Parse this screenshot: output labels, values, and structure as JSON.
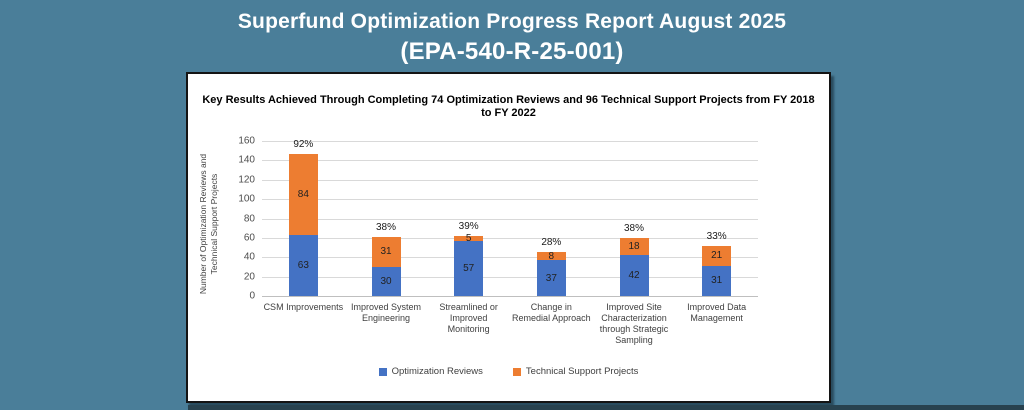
{
  "page": {
    "title_line1": "Superfund Optimization Progress Report August 2025",
    "title_line2": "(EPA-540-R-25-001)"
  },
  "colors": {
    "background": "#4a7e99",
    "panel": "#ffffff",
    "panel_border": "#141414",
    "optimization_reviews": "#4472C4",
    "technical_support_projects": "#ED7D31",
    "gridline": "#d9d9d9"
  },
  "chart_data": {
    "type": "bar",
    "stacked": true,
    "title": "Key Results Achieved Through Completing 74 Optimization Reviews and 96 Technical Support Projects from FY 2018 to FY 2022",
    "ylabel": "Number of Optimization Reviews and Technical Support Projects",
    "ylabel_lines": [
      "Number of Optimization Reviews and",
      "Technical Support Projects"
    ],
    "xlabel": "",
    "ylim": [
      0,
      160
    ],
    "yticks": [
      0,
      20,
      40,
      60,
      80,
      100,
      120,
      140,
      160
    ],
    "grid": true,
    "legend_position": "bottom",
    "categories": [
      "CSM Improvements",
      "Improved System Engineering",
      "Streamlined or Improved Monitoring",
      "Change in Remedial Approach",
      "Improved Site Characterization through Strategic Sampling",
      "Improved Data Management"
    ],
    "series": [
      {
        "name": "Optimization Reviews",
        "color": "#4472C4",
        "values": [
          63,
          30,
          57,
          37,
          42,
          31
        ]
      },
      {
        "name": "Technical Support Projects",
        "color": "#ED7D31",
        "values": [
          84,
          31,
          5,
          8,
          18,
          21
        ]
      }
    ],
    "total_labels": [
      "92%",
      "38%",
      "39%",
      "28%",
      "38%",
      "33%"
    ]
  }
}
